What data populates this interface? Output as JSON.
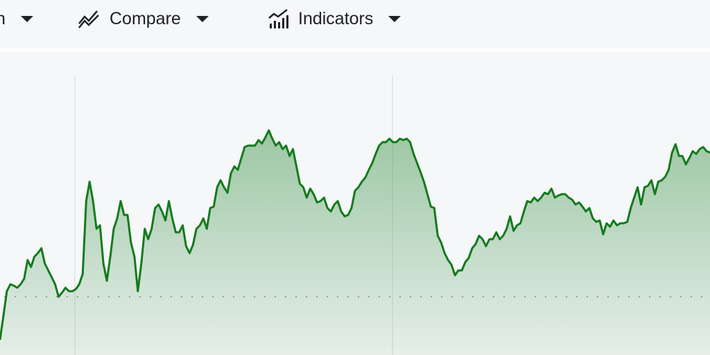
{
  "toolbar": {
    "items": [
      {
        "label": "n",
        "icon": "caret-down-icon"
      },
      {
        "label": "Compare",
        "icon": "compare-lines-icon"
      },
      {
        "label": "Indicators",
        "icon": "indicators-chart-icon"
      }
    ]
  },
  "chart_data": {
    "type": "area",
    "title": "",
    "xlabel": "",
    "ylabel": "",
    "grid": false,
    "ylim": [
      0,
      440
    ],
    "reference_line": 84,
    "line_color": "#137a1c",
    "fill_color": "#2e8b3a",
    "values": [
      22,
      57,
      92,
      102,
      100,
      97,
      102,
      110,
      137,
      127,
      142,
      147,
      154,
      132,
      122,
      112,
      102,
      84,
      90,
      97,
      92,
      92,
      95,
      102,
      117,
      222,
      250,
      222,
      182,
      187,
      132,
      107,
      142,
      182,
      197,
      222,
      202,
      202,
      162,
      142,
      92,
      132,
      182,
      167,
      182,
      212,
      217,
      207,
      194,
      222,
      197,
      177,
      177,
      187,
      157,
      147,
      159,
      182,
      187,
      197,
      182,
      212,
      214,
      242,
      252,
      242,
      234,
      262,
      272,
      267,
      284,
      300,
      302,
      302,
      302,
      310,
      305,
      314,
      324,
      312,
      302,
      307,
      297,
      302,
      287,
      297,
      272,
      247,
      242,
      227,
      240,
      232,
      220,
      222,
      227,
      212,
      207,
      217,
      222,
      207,
      200,
      202,
      212,
      237,
      242,
      250,
      256,
      267,
      277,
      290,
      302,
      307,
      307,
      312,
      307,
      307,
      312,
      310,
      312,
      307,
      290,
      277,
      264,
      250,
      232,
      214,
      212,
      172,
      162,
      147,
      137,
      130,
      115,
      122,
      122,
      134,
      140,
      154,
      160,
      172,
      167,
      157,
      167,
      167,
      177,
      167,
      172,
      182,
      200,
      179,
      187,
      190,
      207,
      222,
      220,
      227,
      222,
      227,
      234,
      232,
      240,
      227,
      230,
      232,
      232,
      227,
      224,
      217,
      220,
      214,
      207,
      212,
      197,
      192,
      194,
      174,
      190,
      185,
      194,
      187,
      190,
      190,
      192,
      212,
      227,
      242,
      217,
      242,
      244,
      252,
      232,
      250,
      252,
      257,
      267,
      292,
      304,
      287,
      287,
      275,
      284,
      294,
      290,
      297,
      300,
      294,
      292
    ]
  }
}
